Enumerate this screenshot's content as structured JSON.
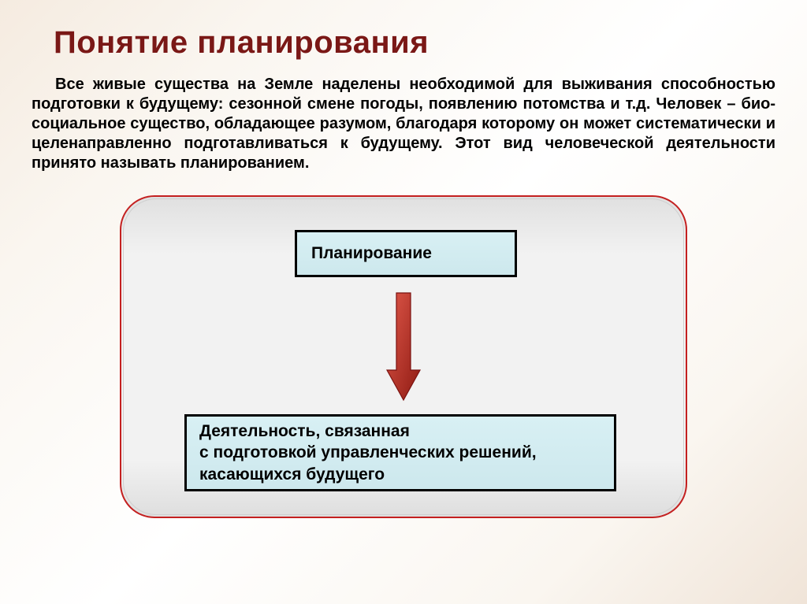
{
  "title": {
    "text": "Понятие планирования",
    "color": "#7a1816",
    "fontsize": 40
  },
  "paragraph": {
    "text": "Все живые существа на Земле наделены необходимой для выживания способностью подготовки к будущему: сезонной смене погоды, появлению потомства и т.д. Человек – био-социальное существо, обладающее разумом, благодаря которому он может систематически и целенаправленно подготавливаться к будущему. Этот вид человеческой деятельности принято называть планированием.",
    "color": "#000000",
    "fontsize": 20
  },
  "diagram": {
    "type": "flowchart",
    "container": {
      "border_color": "#c42020",
      "background_top": "#e0e0e0",
      "background_mid": "#f2f2f2",
      "border_radius": 44
    },
    "nodes": [
      {
        "id": "planning",
        "label": "Планирование",
        "fill": "#d4eef2",
        "border": "#000000",
        "fontsize": 21
      },
      {
        "id": "definition",
        "label": "Деятельность, связанная\n с подготовкой управленческих решений, касающихся будущего",
        "fill": "#d4eef2",
        "border": "#000000",
        "fontsize": 21
      }
    ],
    "edges": [
      {
        "from": "planning",
        "to": "definition",
        "stroke": "#c42020",
        "fill": "#d03a2a",
        "fill_gradient_end": "#8e1a12"
      }
    ]
  },
  "colors": {
    "slide_bg_light": "#ffffff",
    "slide_bg_warm": "#f5ebe0",
    "title_color": "#7a1816",
    "box_fill": "#d4eef2",
    "box_border": "#000000",
    "container_border": "#c42020",
    "arrow_fill_start": "#d03a2a",
    "arrow_fill_end": "#8e1a12",
    "text_color": "#000000"
  }
}
